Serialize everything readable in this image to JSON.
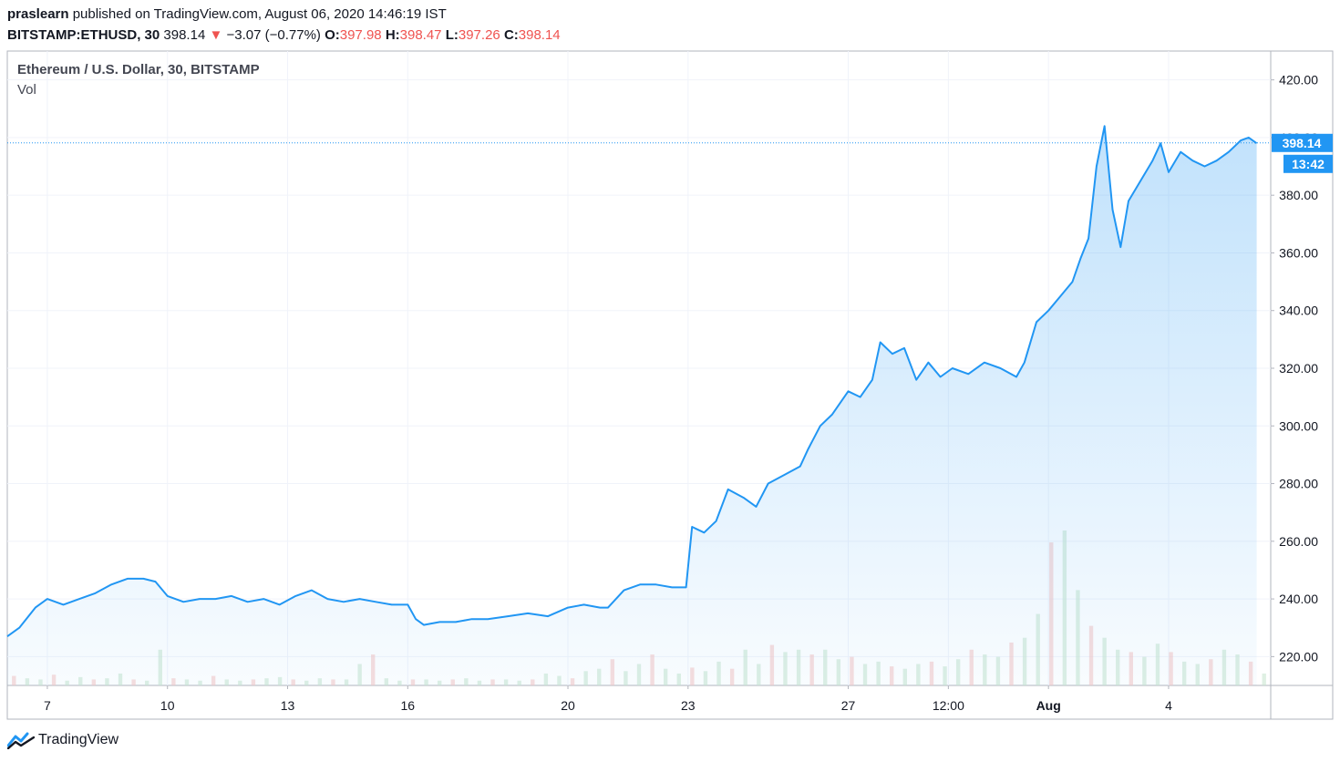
{
  "header": {
    "publisher": "praslearn",
    "published_text": "published on TradingView.com, August 06, 2020 14:46:19 IST",
    "symbol": "BITSTAMP:ETHUSD, 30",
    "last": "398.14",
    "change_arrow": "▼",
    "change": "−3.07 (−0.77%)",
    "open_label": "O:",
    "open": "397.98",
    "high_label": "H:",
    "high": "398.47",
    "low_label": "L:",
    "low": "397.26",
    "close_label": "C:",
    "close": "398.14"
  },
  "legend": {
    "title": "Ethereum / U.S. Dollar, 30, BITSTAMP",
    "vol": "Vol"
  },
  "price_label": {
    "value": "398.14",
    "countdown": "13:42"
  },
  "footer": {
    "brand": "TradingView",
    "icon": "tradingview-logo-icon"
  },
  "colors": {
    "line": "#2196f3",
    "label_bg": "#2196f3",
    "down": "#ef5350",
    "grid": "#f0f3fa"
  },
  "chart_data": {
    "type": "area",
    "title": "Ethereum / U.S. Dollar, 30, BITSTAMP",
    "ylim": [
      210,
      430
    ],
    "y_ticks": [
      "420.00",
      "400.00",
      "380.00",
      "360.00",
      "340.00",
      "320.00",
      "300.00",
      "280.00",
      "260.00",
      "240.00",
      "220.00"
    ],
    "x_tick_labels": [
      "7",
      "10",
      "13",
      "16",
      "20",
      "23",
      "27",
      "12:00",
      "Aug",
      "4"
    ],
    "x_tick_days": [
      7,
      10,
      13,
      16,
      20,
      23,
      27,
      29.5,
      32,
      35
    ],
    "grid": true,
    "x_days": [
      6.0,
      6.3,
      6.7,
      7.0,
      7.4,
      7.8,
      8.2,
      8.6,
      9.0,
      9.4,
      9.7,
      10.0,
      10.4,
      10.8,
      11.2,
      11.6,
      12.0,
      12.4,
      12.8,
      13.2,
      13.6,
      14.0,
      14.4,
      14.8,
      15.2,
      15.6,
      16.0,
      16.2,
      16.4,
      16.8,
      17.2,
      17.6,
      18.0,
      18.5,
      19.0,
      19.5,
      20.0,
      20.4,
      20.8,
      21.0,
      21.4,
      21.8,
      22.2,
      22.6,
      22.95,
      23.1,
      23.4,
      23.7,
      24.0,
      24.4,
      24.7,
      25.0,
      25.4,
      25.8,
      26.0,
      26.3,
      26.6,
      27.0,
      27.3,
      27.6,
      27.8,
      28.1,
      28.4,
      28.7,
      29.0,
      29.3,
      29.6,
      30.0,
      30.4,
      30.8,
      31.2,
      31.4,
      31.7,
      32.0,
      32.3,
      32.6,
      32.8,
      33.0,
      33.2,
      33.4,
      33.6,
      33.8,
      34.0,
      34.3,
      34.6,
      34.8,
      35.0,
      35.3,
      35.6,
      35.9,
      36.2,
      36.5,
      36.8,
      37.0,
      37.2
    ],
    "y_values": [
      227,
      230,
      237,
      240,
      238,
      240,
      242,
      245,
      247,
      247,
      246,
      241,
      239,
      240,
      240,
      241,
      239,
      240,
      238,
      241,
      243,
      240,
      239,
      240,
      239,
      238,
      238,
      233,
      231,
      232,
      232,
      233,
      233,
      234,
      235,
      234,
      237,
      238,
      237,
      237,
      243,
      245,
      245,
      244,
      244,
      265,
      263,
      267,
      278,
      275,
      272,
      280,
      283,
      286,
      292,
      300,
      304,
      312,
      310,
      316,
      329,
      325,
      327,
      316,
      322,
      317,
      320,
      318,
      322,
      320,
      317,
      322,
      336,
      340,
      345,
      350,
      358,
      365,
      390,
      404,
      375,
      362,
      378,
      385,
      392,
      398,
      388,
      395,
      392,
      390,
      392,
      395,
      399,
      400,
      398
    ],
    "volume": {
      "series": "Vol",
      "values": [
        8,
        6,
        5,
        9,
        4,
        7,
        5,
        6,
        10,
        5,
        4,
        30,
        6,
        5,
        4,
        8,
        5,
        4,
        5,
        6,
        7,
        5,
        4,
        6,
        5,
        5,
        18,
        26,
        6,
        4,
        5,
        5,
        4,
        5,
        6,
        4,
        5,
        5,
        4,
        5,
        10,
        8,
        6,
        12,
        14,
        22,
        12,
        18,
        26,
        14,
        10,
        15,
        12,
        20,
        14,
        30,
        18,
        34,
        28,
        30,
        26,
        30,
        22,
        24,
        18,
        20,
        16,
        14,
        18,
        20,
        16,
        22,
        30,
        26,
        24,
        36,
        40,
        60,
        120,
        130,
        80,
        50,
        40,
        30,
        28,
        24,
        35,
        28,
        20,
        18,
        22,
        30,
        26,
        20,
        10
      ]
    }
  }
}
